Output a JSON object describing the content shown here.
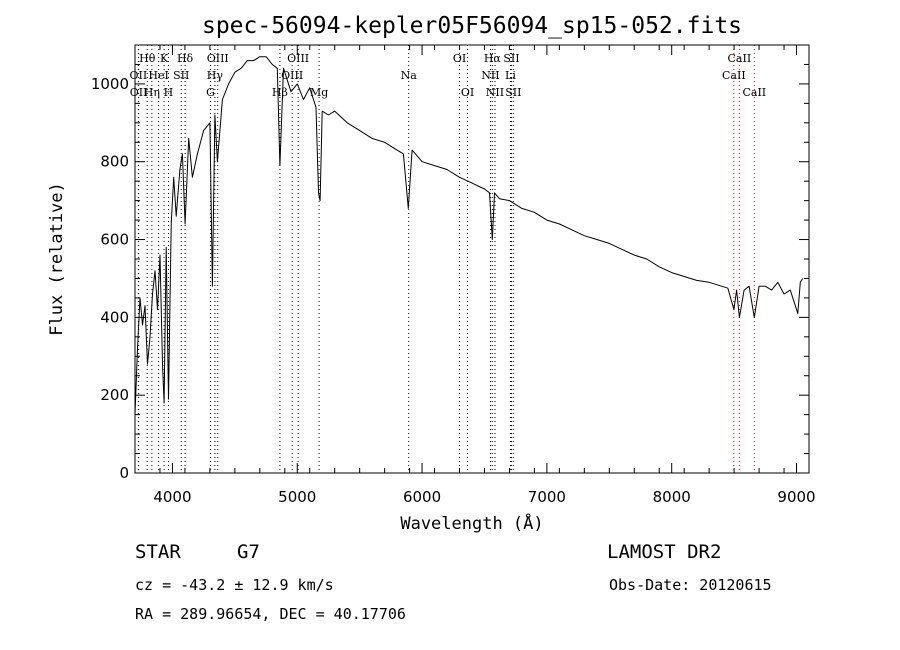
{
  "chart_data": {
    "type": "line",
    "title": "spec-56094-kepler05F56094_sp15-052.fits",
    "xlabel": "Wavelength (Å)",
    "ylabel": "Flux (relative)",
    "xlim": [
      3700,
      9100
    ],
    "ylim": [
      0,
      1100
    ],
    "x_ticks": [
      4000,
      5000,
      6000,
      7000,
      8000,
      9000
    ],
    "y_ticks": [
      0,
      200,
      400,
      600,
      800,
      1000
    ],
    "grid": false,
    "series": [
      {
        "x": [
          3700,
          3720,
          3740,
          3760,
          3780,
          3800,
          3820,
          3840,
          3860,
          3880,
          3900,
          3920,
          3933,
          3950,
          3968,
          3990,
          4010,
          4030,
          4060,
          4080,
          4101,
          4130,
          4160,
          4200,
          4250,
          4300,
          4320,
          4340,
          4360,
          4400,
          4450,
          4500,
          4550,
          4600,
          4650,
          4700,
          4750,
          4800,
          4840,
          4861,
          4890,
          4950,
          5000,
          5050,
          5100,
          5150,
          5170,
          5183,
          5200,
          5250,
          5300,
          5400,
          5500,
          5600,
          5700,
          5800,
          5850,
          5890,
          5920,
          6000,
          6100,
          6200,
          6300,
          6400,
          6500,
          6540,
          6563,
          6580,
          6620,
          6700,
          6800,
          6900,
          7000,
          7100,
          7200,
          7300,
          7400,
          7500,
          7600,
          7700,
          7800,
          7900,
          8000,
          8100,
          8200,
          8300,
          8400,
          8450,
          8498,
          8520,
          8542,
          8580,
          8620,
          8662,
          8700,
          8750,
          8800,
          8850,
          8900,
          8950,
          8990,
          9010,
          9030,
          9050
        ],
        "y": [
          150,
          320,
          450,
          380,
          430,
          280,
          350,
          460,
          520,
          420,
          560,
          280,
          180,
          580,
          190,
          640,
          760,
          660,
          780,
          820,
          640,
          860,
          760,
          820,
          880,
          900,
          480,
          920,
          800,
          960,
          1000,
          1030,
          1040,
          1060,
          1060,
          1070,
          1070,
          1050,
          1040,
          790,
          1040,
          980,
          1000,
          960,
          990,
          940,
          720,
          700,
          930,
          920,
          930,
          900,
          880,
          860,
          850,
          830,
          820,
          680,
          830,
          800,
          790,
          780,
          760,
          745,
          730,
          720,
          600,
          720,
          705,
          700,
          680,
          670,
          650,
          640,
          625,
          610,
          600,
          590,
          575,
          560,
          550,
          530,
          515,
          505,
          495,
          490,
          480,
          475,
          420,
          470,
          400,
          470,
          480,
          400,
          480,
          480,
          470,
          490,
          460,
          470,
          430,
          410,
          490,
          500
        ]
      }
    ],
    "line_markers": [
      {
        "label": "Hθ",
        "x": 3798,
        "color": "#000000",
        "row": 1
      },
      {
        "label": "K",
        "x": 3933,
        "color": "#000000",
        "row": 1
      },
      {
        "label": "Hδ",
        "x": 4101,
        "color": "#000000",
        "row": 1
      },
      {
        "label": "OIII",
        "x": 4363,
        "color": "#000000",
        "row": 1
      },
      {
        "label": "OIII",
        "x": 5007,
        "color": "#000000",
        "row": 1
      },
      {
        "label": "OI",
        "x": 6300,
        "color": "#000000",
        "row": 1
      },
      {
        "label": "Hα",
        "x": 6563,
        "color": "#000000",
        "row": 1
      },
      {
        "label": "SII",
        "x": 6716,
        "color": "#000000",
        "row": 1
      },
      {
        "label": "CaII",
        "x": 8542,
        "color": "#cc0000",
        "row": 1
      },
      {
        "label": "OII",
        "x": 3727,
        "color": "#000000",
        "row": 2
      },
      {
        "label": "HeI",
        "x": 3889,
        "color": "#000000",
        "row": 2
      },
      {
        "label": "SII",
        "x": 4070,
        "color": "#000000",
        "row": 2
      },
      {
        "label": "Hγ",
        "x": 4340,
        "color": "#000000",
        "row": 2
      },
      {
        "label": "OIII",
        "x": 4959,
        "color": "#000000",
        "row": 2
      },
      {
        "label": "Na",
        "x": 5893,
        "color": "#000000",
        "row": 2
      },
      {
        "label": "NII",
        "x": 6548,
        "color": "#000000",
        "row": 2
      },
      {
        "label": "Li",
        "x": 6708,
        "color": "#000000",
        "row": 2
      },
      {
        "label": "CaII",
        "x": 8498,
        "color": "#cc0000",
        "row": 2
      },
      {
        "label": "OII",
        "x": 3729,
        "color": "#000000",
        "row": 3
      },
      {
        "label": "Hη",
        "x": 3835,
        "color": "#000000",
        "row": 3
      },
      {
        "label": "H",
        "x": 3968,
        "color": "#000000",
        "row": 3
      },
      {
        "label": "G",
        "x": 4305,
        "color": "#000000",
        "row": 3
      },
      {
        "label": "Hβ",
        "x": 4861,
        "color": "#000000",
        "row": 3
      },
      {
        "label": "Mg",
        "x": 5175,
        "color": "#000000",
        "row": 3
      },
      {
        "label": "OI",
        "x": 6364,
        "color": "#000000",
        "row": 3
      },
      {
        "label": "NII",
        "x": 6584,
        "color": "#000000",
        "row": 3
      },
      {
        "label": "SII",
        "x": 6731,
        "color": "#000000",
        "row": 3
      },
      {
        "label": "CaII",
        "x": 8662,
        "color": "#cc0000",
        "row": 3
      }
    ]
  },
  "footer": {
    "object_class": "STAR",
    "subclass": "G7",
    "survey": "LAMOST DR2",
    "redshift": "cz = -43.2 ± 12.9 km/s",
    "obs_date": "Obs-Date: 20120615",
    "coords": "RA = 289.96654, DEC =  40.17706"
  }
}
